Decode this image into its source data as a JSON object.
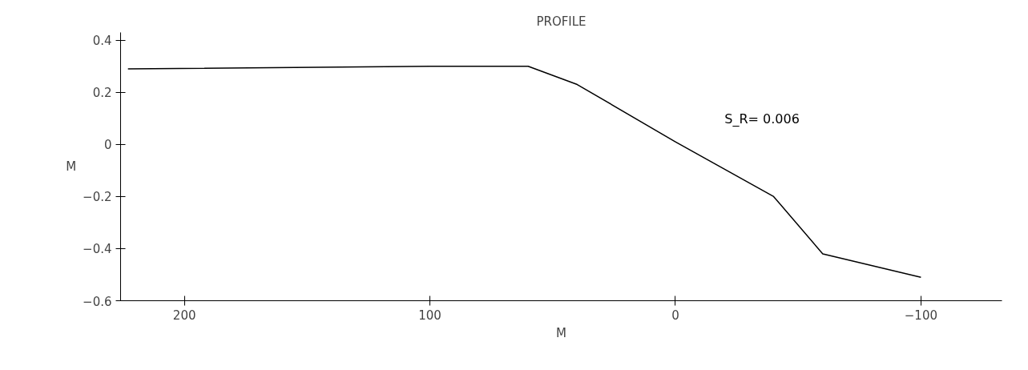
{
  "chart_data": {
    "type": "line",
    "title": "PROFILE",
    "xlabel": "M",
    "ylabel": "M",
    "x": [
      223,
      100,
      60,
      40,
      0,
      -40,
      -60,
      -100
    ],
    "values": [
      0.29,
      0.3,
      0.3,
      0.23,
      0.01,
      -0.2,
      -0.42,
      -0.51
    ],
    "color": "#000000",
    "xlim": [
      226,
      -133
    ],
    "xticks": [
      200,
      100,
      0,
      -100
    ],
    "ylim": [
      -0.6,
      0.43
    ],
    "yticks": [
      -0.6,
      -0.4,
      -0.2,
      0,
      0.2,
      0.4
    ],
    "annotations": [
      "S_R= 0.006"
    ],
    "grid": false,
    "marker": "none",
    "line_style": "solid"
  }
}
